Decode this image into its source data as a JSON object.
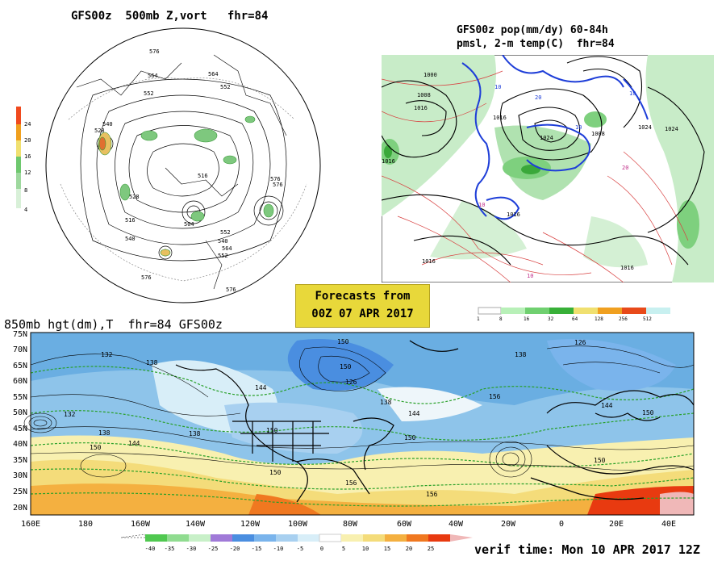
{
  "panels": {
    "polar": {
      "title": "GFS00z  500mb Z,vort   fhr=84",
      "contour_labels": [
        "576",
        "564",
        "552",
        "540",
        "528",
        "516",
        "552",
        "564",
        "576",
        "576",
        "552",
        "564",
        "576",
        "540",
        "528",
        "516",
        "504",
        "540",
        "552",
        "576"
      ],
      "scale": {
        "values": [
          "24",
          "20",
          "16",
          "12",
          "8",
          "4"
        ],
        "colors": [
          "#f04a1e",
          "#f0a01e",
          "#f0e070",
          "#6ec86e",
          "#9ed89e",
          "#d8f0d8"
        ]
      }
    },
    "precip": {
      "title_line1": "GFS00z pop(mm/dy) 60-84h",
      "title_line2": "pmsl, 2-m temp(C)  fhr=84",
      "contour_labels": [
        "1000",
        "1008",
        "1016",
        "1024",
        "1016",
        "1008",
        "1016",
        "1024",
        "1016",
        "1016",
        "1016",
        "1024",
        "10",
        "20",
        "10",
        "10",
        "10",
        "10",
        "20"
      ],
      "scale": {
        "values": [
          "1",
          "8",
          "16",
          "32",
          "64",
          "128",
          "256",
          "512"
        ],
        "colors": [
          "#ffffff",
          "#b8f0b8",
          "#70d070",
          "#38b038",
          "#f0e070",
          "#f0a020",
          "#e84a1a",
          "#c8f0f0",
          "#ffffff"
        ]
      }
    },
    "forecast_box": {
      "line1": "Forecasts from",
      "line2": "00Z 07 APR 2017"
    },
    "main": {
      "title": "850mb hgt(dm),T  fhr=84 GFS00z",
      "lat_labels": [
        "75N",
        "70N",
        "65N",
        "60N",
        "55N",
        "50N",
        "45N",
        "40N",
        "35N",
        "30N",
        "25N",
        "20N"
      ],
      "lon_labels": [
        "160E",
        "180",
        "160W",
        "140W",
        "120W",
        "100W",
        "80W",
        "60W",
        "40W",
        "20W",
        "0",
        "20E",
        "40E"
      ],
      "contour_labels": [
        "132",
        "138",
        "132",
        "138",
        "144",
        "150",
        "138",
        "144",
        "126",
        "138",
        "144",
        "150",
        "156",
        "150",
        "138",
        "126",
        "144",
        "150",
        "150",
        "150",
        "156",
        "156",
        "150",
        "150"
      ],
      "scale": {
        "values": [
          "-40",
          "-35",
          "-30",
          "-25",
          "-20",
          "-15",
          "-10",
          "-5",
          "0",
          "5",
          "10",
          "15",
          "20",
          "25"
        ],
        "colors": [
          "#50c850",
          "#90dc90",
          "#c8f0c8",
          "#a07ad8",
          "#4a8ee0",
          "#7ab4ec",
          "#a8d0f0",
          "#d8eef8",
          "#ffffff",
          "#f8f0b0",
          "#f4dc7a",
          "#f4b040",
          "#f07820",
          "#e83a10"
        ]
      }
    },
    "verif": "verif time: Mon 10 APR 2017 12Z"
  },
  "colors": {
    "land_warm": "#f4c050",
    "ocean_blue": "#8ec4ea",
    "cold_white": "#e8f4fa",
    "green_contour": "#28a028",
    "blue_precip": "#1e3ed8"
  }
}
